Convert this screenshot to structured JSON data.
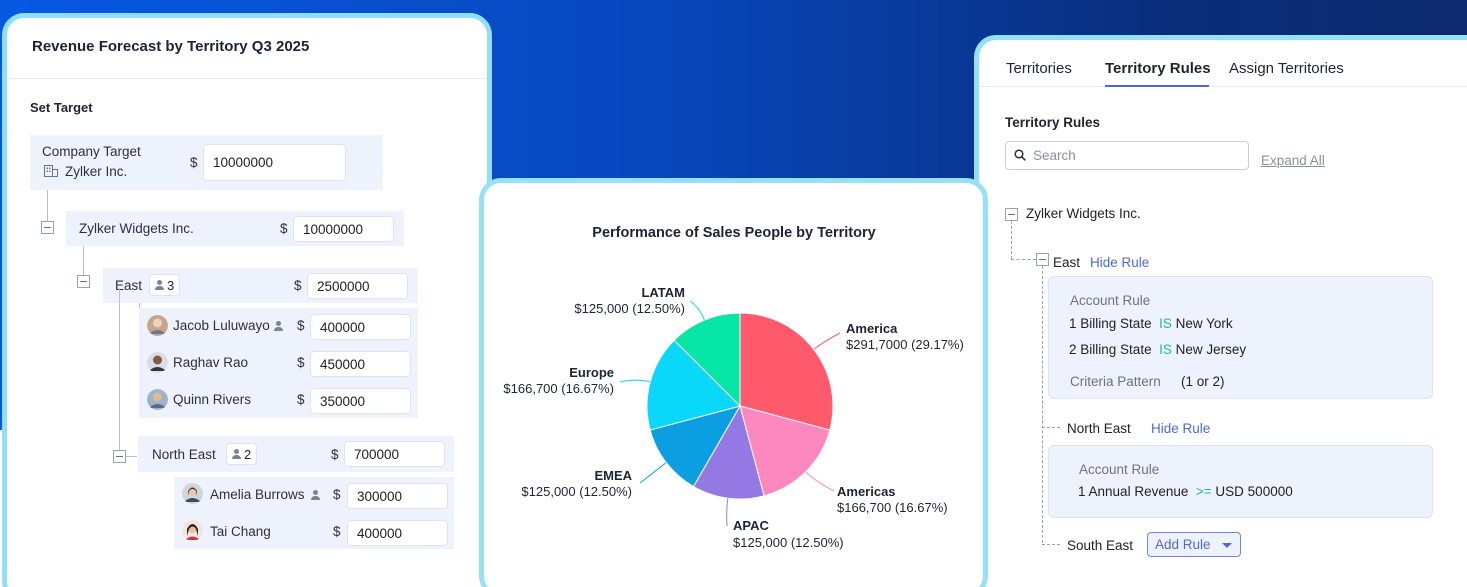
{
  "forecast": {
    "title": "Revenue Forecast by Territory Q3 2025",
    "set_target_label": "Set Target",
    "company": {
      "label": "Company Target",
      "name": "Zylker Inc.",
      "currency": "$",
      "value": "10000000"
    },
    "widgets": {
      "label": "Zylker Widgets Inc.",
      "currency": "$",
      "value": "10000000"
    },
    "east": {
      "label": "East",
      "count": "3",
      "currency": "$",
      "value": "2500000",
      "members": [
        {
          "name": "Jacob Luluwayo",
          "currency": "$",
          "value": "400000"
        },
        {
          "name": "Raghav Rao",
          "currency": "$",
          "value": "450000"
        },
        {
          "name": "Quinn Rivers",
          "currency": "$",
          "value": "350000"
        }
      ]
    },
    "north_east": {
      "label": "North East",
      "count": "2",
      "currency": "$",
      "value": "700000",
      "members": [
        {
          "name": "Amelia Burrows",
          "currency": "$",
          "value": "300000"
        },
        {
          "name": "Tai Chang",
          "currency": "$",
          "value": "400000"
        }
      ]
    }
  },
  "chart_data": {
    "type": "pie",
    "title": "Performance of Sales People by Territory",
    "slices": [
      {
        "name": "America",
        "value": 29.17,
        "label": "$291,7000 (29.17%)",
        "color": "#fe5a6c"
      },
      {
        "name": "Americas",
        "value": 16.67,
        "label": "$166,700 (16.67%)",
        "color": "#fd87bf"
      },
      {
        "name": "APAC",
        "value": 12.5,
        "label": "$125,000 (12.50%)",
        "color": "#9478e3"
      },
      {
        "name": "EMEA",
        "value": 12.5,
        "label": "$125,000 (12.50%)",
        "color": "#0b9fe2"
      },
      {
        "name": "Europe",
        "value": 16.67,
        "label": "$166,700 (16.67%)",
        "color": "#0ad8fb"
      },
      {
        "name": "LATAM",
        "value": 12.5,
        "label": "$125,000 (12.50%)",
        "color": "#05e6a7"
      }
    ]
  },
  "territory": {
    "tabs": [
      "Territories",
      "Territory Rules",
      "Assign Territories"
    ],
    "active_tab": "Territory Rules",
    "section_title": "Territory Rules",
    "search_placeholder": "Search",
    "expand_all": "Expand All",
    "root": "Zylker Widgets Inc.",
    "east": {
      "label": "East",
      "hide_rule": "Hide Rule",
      "rule_title": "Account Rule",
      "conditions": [
        {
          "num": "1",
          "field": "Billing State",
          "op": "IS",
          "value": "New York"
        },
        {
          "num": "2",
          "field": "Billing State",
          "op": "IS",
          "value": "New Jersey"
        }
      ],
      "criteria_label": "Criteria Pattern",
      "criteria_value": "(1 or 2)"
    },
    "north_east": {
      "label": "North East",
      "hide_rule": "Hide Rule",
      "rule_title": "Account Rule",
      "conditions": [
        {
          "num": "1",
          "field": "Annual Revenue",
          "op": ">=",
          "value": "USD 500000"
        }
      ]
    },
    "south_east": {
      "label": "South East",
      "add_rule": "Add Rule"
    }
  }
}
